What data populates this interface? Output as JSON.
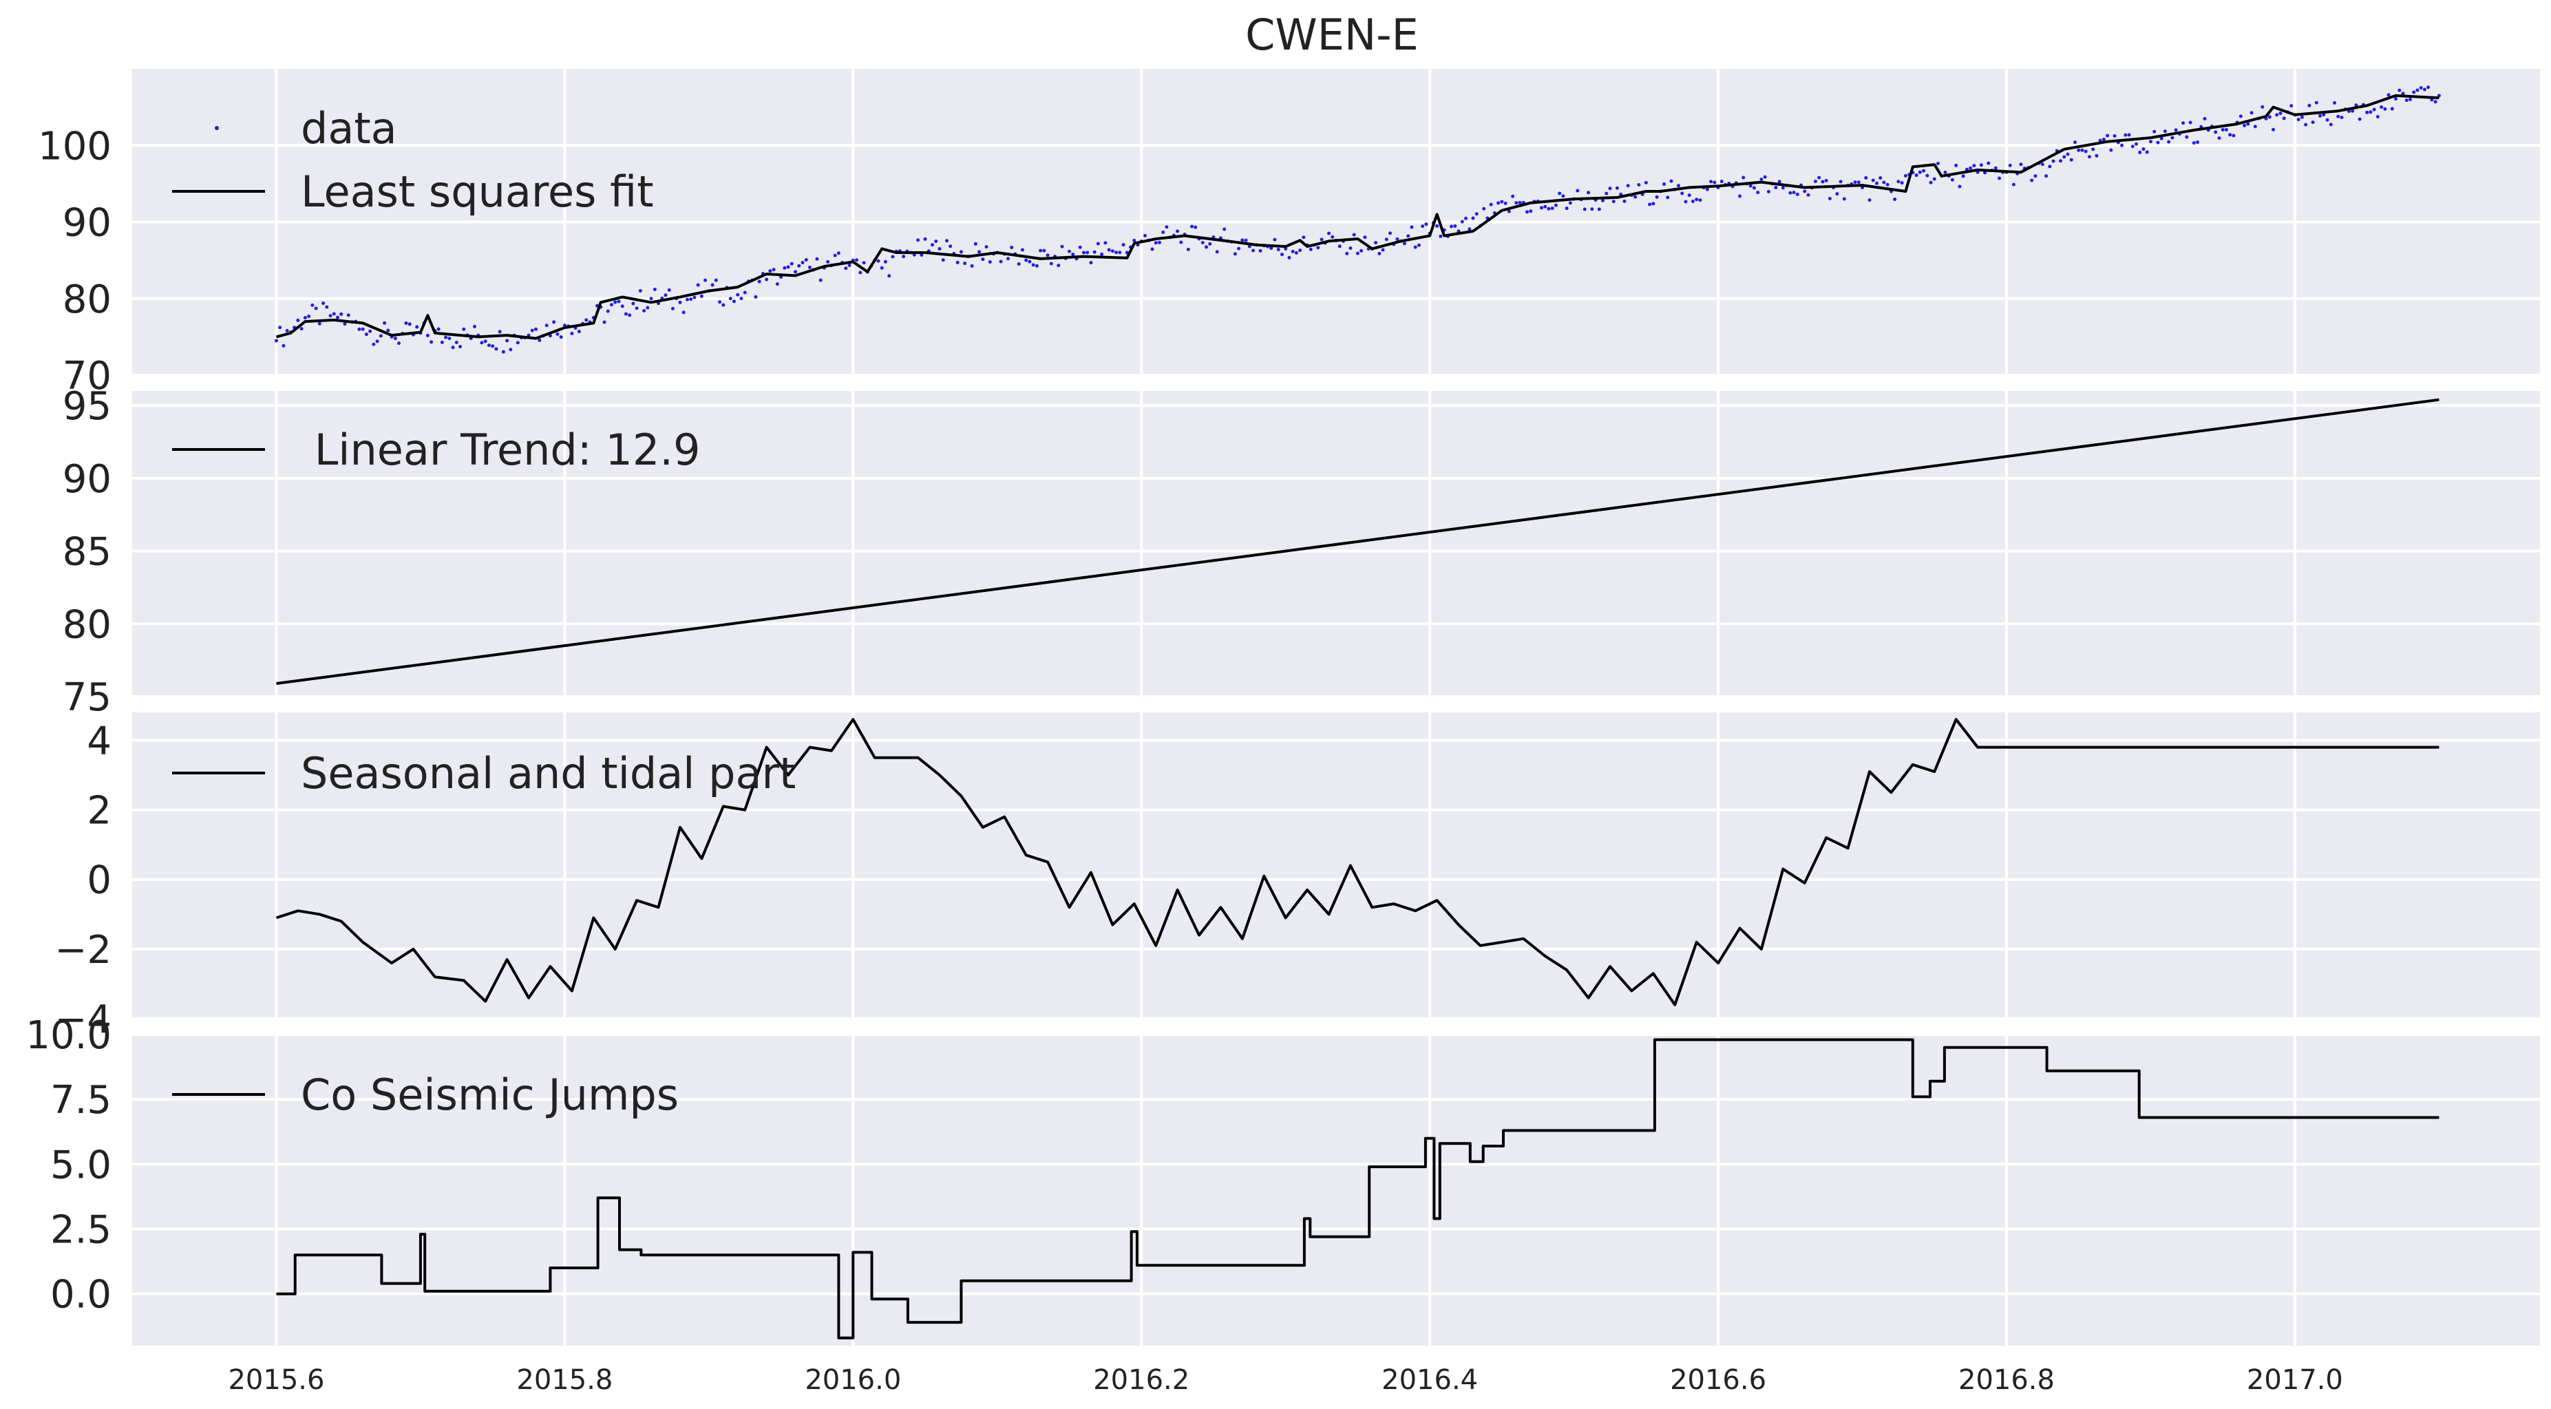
{
  "figure": {
    "title": "CWEN-E",
    "x_tick_labels": [
      "2015.6",
      "2015.8",
      "2016.0",
      "2016.2",
      "2016.4",
      "2016.6",
      "2016.8",
      "2017.0"
    ]
  },
  "colors": {
    "panel_background": "#eaeaf2",
    "grid": "#ffffff",
    "line": "#000000",
    "data_points": "#1f1fe0"
  },
  "chart_data": [
    {
      "type": "scatter",
      "title": "CWEN-E",
      "xlim": [
        2015.5,
        2017.17
      ],
      "ylim": [
        70,
        110
      ],
      "x_ticks": [
        2015.6,
        2015.8,
        2016.0,
        2016.2,
        2016.4,
        2016.6,
        2016.8,
        2017.0
      ],
      "y_ticks": [
        70,
        80,
        90,
        100
      ],
      "y_tick_labels": [
        "70",
        "80",
        "90",
        "100"
      ],
      "grid": true,
      "legend_position": "top-left",
      "series": [
        {
          "name": "data",
          "style": "points",
          "note_of_density": "daily observations scattered around the fit",
          "x": [
            2015.6,
            2015.62,
            2015.64,
            2015.66,
            2015.68,
            2015.7,
            2015.72,
            2015.74,
            2015.76,
            2015.78,
            2015.8,
            2015.82,
            2015.84,
            2015.86,
            2015.88,
            2015.9,
            2015.92,
            2015.94,
            2015.96,
            2015.98,
            2016.0,
            2016.02,
            2016.04,
            2016.06,
            2016.08,
            2016.1,
            2016.12,
            2016.14,
            2016.16,
            2016.18,
            2016.2,
            2016.22,
            2016.24,
            2016.26,
            2016.28,
            2016.3,
            2016.32,
            2016.34,
            2016.36,
            2016.38,
            2016.4,
            2016.42,
            2016.44,
            2016.46,
            2016.48,
            2016.5,
            2016.52,
            2016.54,
            2016.56,
            2016.58,
            2016.6,
            2016.62,
            2016.64,
            2016.66,
            2016.68,
            2016.7,
            2016.72,
            2016.74,
            2016.76,
            2016.78,
            2016.8,
            2016.82,
            2016.84,
            2016.86,
            2016.88,
            2016.9,
            2016.92,
            2016.94,
            2016.96,
            2016.98,
            2017.0,
            2017.02,
            2017.04,
            2017.06,
            2017.08,
            2017.1
          ],
          "y": [
            74.5,
            77.5,
            78,
            76,
            75,
            75.5,
            74.8,
            75.2,
            74.5,
            76,
            76.5,
            77.5,
            79,
            80,
            79.5,
            81,
            80.5,
            82.5,
            83.5,
            84,
            85,
            84,
            86,
            86.5,
            85.5,
            86,
            85,
            85.5,
            86,
            86.2,
            87.5,
            88,
            87.8,
            87.5,
            87,
            86.5,
            87,
            87.5,
            86.5,
            87.5,
            88.5,
            88.8,
            90.5,
            92.5,
            92,
            93,
            92.8,
            93.5,
            94,
            93.5,
            94.5,
            95,
            94.5,
            94,
            94.5,
            94.5,
            94,
            96.5,
            96,
            96.5,
            96.5,
            96,
            98.5,
            99.5,
            100,
            100.5,
            101.5,
            102,
            103,
            103.5,
            104,
            104,
            104.5,
            105,
            106,
            106.5
          ]
        },
        {
          "name": "Least squares fit",
          "style": "line",
          "x": [
            2015.6,
            2015.61,
            2015.62,
            2015.64,
            2015.66,
            2015.68,
            2015.7,
            2015.705,
            2015.71,
            2015.74,
            2015.76,
            2015.78,
            2015.8,
            2015.82,
            2015.825,
            2015.84,
            2015.86,
            2015.88,
            2015.9,
            2015.92,
            2015.94,
            2015.96,
            2015.98,
            2016.0,
            2016.01,
            2016.02,
            2016.03,
            2016.05,
            2016.08,
            2016.1,
            2016.13,
            2016.16,
            2016.19,
            2016.195,
            2016.21,
            2016.23,
            2016.26,
            2016.28,
            2016.3,
            2016.31,
            2016.315,
            2016.33,
            2016.35,
            2016.36,
            2016.38,
            2016.4,
            2016.405,
            2016.41,
            2016.43,
            2016.45,
            2016.47,
            2016.5,
            2016.53,
            2016.55,
            2016.56,
            2016.58,
            2016.6,
            2016.63,
            2016.66,
            2016.7,
            2016.73,
            2016.735,
            2016.75,
            2016.755,
            2016.78,
            2016.81,
            2016.83,
            2016.84,
            2016.87,
            2016.9,
            2016.93,
            2016.96,
            2016.98,
            2016.985,
            2017.0,
            2017.03,
            2017.05,
            2017.07,
            2017.1
          ],
          "y": [
            75,
            75.5,
            77,
            77.2,
            76.8,
            75.2,
            75.6,
            77.8,
            75.5,
            75,
            75.2,
            74.8,
            76.2,
            76.8,
            79.5,
            80.2,
            79.5,
            80.2,
            81,
            81.5,
            83.2,
            83,
            84.2,
            84.8,
            83.5,
            86.5,
            86,
            86,
            85.5,
            86,
            85.2,
            85.5,
            85.3,
            87.2,
            87.8,
            88.2,
            87.5,
            87,
            86.8,
            87.6,
            86.8,
            87.5,
            87.8,
            86.5,
            87.5,
            88.2,
            91,
            88.2,
            88.8,
            91.5,
            92.5,
            93,
            93.2,
            94,
            94,
            94.5,
            94.7,
            95.2,
            94.5,
            94.8,
            94,
            97.2,
            97.5,
            96,
            96.8,
            96.5,
            98.5,
            99.5,
            100.5,
            101,
            102,
            102.8,
            103.8,
            105,
            104,
            104.5,
            105.2,
            106.5,
            106.2
          ]
        }
      ]
    },
    {
      "type": "line",
      "xlim": [
        2015.5,
        2017.17
      ],
      "ylim": [
        75,
        96
      ],
      "x_ticks": [
        2015.6,
        2015.8,
        2016.0,
        2016.2,
        2016.4,
        2016.6,
        2016.8,
        2017.0
      ],
      "y_ticks": [
        75,
        80,
        85,
        90,
        95
      ],
      "y_tick_labels": [
        "75",
        "80",
        "85",
        "90",
        "95"
      ],
      "grid": true,
      "legend_position": "top-left",
      "series": [
        {
          "name": " Linear Trend: 12.9",
          "x": [
            2015.6,
            2017.1
          ],
          "y": [
            75.9,
            95.4
          ]
        }
      ]
    },
    {
      "type": "line",
      "xlim": [
        2015.5,
        2017.17
      ],
      "ylim": [
        -4,
        4.8
      ],
      "x_ticks": [
        2015.6,
        2015.8,
        2016.0,
        2016.2,
        2016.4,
        2016.6,
        2016.8,
        2017.0
      ],
      "y_ticks": [
        -4,
        -2,
        0,
        2,
        4
      ],
      "y_tick_labels": [
        "−4",
        "−2",
        "0",
        "2",
        "4"
      ],
      "grid": true,
      "legend_position": "top-left",
      "series": [
        {
          "name": "Seasonal and tidal part",
          "x": [
            2015.6,
            2015.615,
            2015.63,
            2015.645,
            2015.66,
            2015.68,
            2015.695,
            2015.71,
            2015.73,
            2015.745,
            2015.76,
            2015.775,
            2015.79,
            2015.805,
            2015.82,
            2015.835,
            2015.85,
            2015.865,
            2015.88,
            2015.895,
            2015.91,
            2015.925,
            2015.94,
            2015.955,
            2015.97,
            2015.985,
            2016.0,
            2016.015,
            2016.03,
            2016.045,
            2016.06,
            2016.075,
            2016.09,
            2016.105,
            2016.12,
            2016.135,
            2016.15,
            2016.165,
            2016.18,
            2016.195,
            2016.21,
            2016.225,
            2016.24,
            2016.255,
            2016.27,
            2016.285,
            2016.3,
            2016.315,
            2016.33,
            2016.345,
            2016.36,
            2016.375,
            2016.39,
            2016.405,
            2016.42,
            2016.435,
            2016.45,
            2016.465,
            2016.48,
            2016.495,
            2016.51,
            2016.525,
            2016.54,
            2016.555,
            2016.57,
            2016.585,
            2016.6,
            2016.615,
            2016.63,
            2016.645,
            2016.66,
            2016.675,
            2016.69,
            2016.705,
            2016.72,
            2016.735,
            2016.75,
            2016.765,
            2016.78,
            2016.795,
            2016.81,
            2016.825,
            2016.84,
            2016.855,
            2016.87,
            2016.885,
            2016.9,
            2016.915,
            2016.93,
            2016.945,
            2016.96,
            2016.975,
            2016.99,
            2017.005,
            2017.02,
            2017.035,
            2017.05,
            2017.065,
            2017.08,
            2017.1
          ],
          "y": [
            -1.1,
            -0.9,
            -1.0,
            -1.2,
            -1.8,
            -2.4,
            -2.0,
            -2.8,
            -2.9,
            -3.5,
            -2.3,
            -3.4,
            -2.5,
            -3.2,
            -1.1,
            -2.0,
            -0.6,
            -0.8,
            1.5,
            0.6,
            2.1,
            2.0,
            3.8,
            3.0,
            3.8,
            3.7,
            4.6,
            3.5,
            3.5,
            3.5,
            3.0,
            2.4,
            1.5,
            1.8,
            0.7,
            0.5,
            -0.8,
            0.2,
            -1.3,
            -0.7,
            -1.9,
            -0.3,
            -1.6,
            -0.8,
            -1.7,
            0.1,
            -1.1,
            -0.3,
            -1.0,
            0.4,
            -0.8,
            -0.7,
            -0.9,
            -0.6,
            -1.3,
            -1.9,
            -1.8,
            -1.7,
            -2.2,
            -2.6,
            -3.4,
            -2.5,
            -3.2,
            -2.7,
            -3.6,
            -1.8,
            -2.4,
            -1.4,
            -2.0,
            0.3,
            -0.1,
            1.2,
            0.9,
            3.1,
            2.5,
            3.3,
            3.1,
            4.6,
            3.8,
            3.8,
            3.8,
            3.8,
            3.8,
            3.8,
            3.8,
            3.8,
            3.8,
            3.8,
            3.8,
            3.8,
            3.8,
            3.8,
            3.8,
            3.8,
            3.8,
            3.8,
            3.8,
            3.8,
            3.8,
            3.8
          ]
        }
      ]
    },
    {
      "type": "line",
      "xlim": [
        2015.5,
        2017.17
      ],
      "ylim": [
        -2.0,
        10.0
      ],
      "x_ticks": [
        2015.6,
        2015.8,
        2016.0,
        2016.2,
        2016.4,
        2016.6,
        2016.8,
        2017.0
      ],
      "y_ticks": [
        0.0,
        2.5,
        5.0,
        7.5,
        10.0
      ],
      "y_tick_labels": [
        "0.0",
        "2.5",
        "5.0",
        "7.5",
        "10.0"
      ],
      "grid": true,
      "legend_position": "top-left",
      "series": [
        {
          "name": "Co Seismic Jumps",
          "step": true,
          "x": [
            2015.6,
            2015.613,
            2015.613,
            2015.673,
            2015.673,
            2015.7,
            2015.7,
            2015.703,
            2015.703,
            2015.79,
            2015.79,
            2015.823,
            2015.823,
            2015.838,
            2015.838,
            2015.853,
            2015.853,
            2015.99,
            2015.99,
            2016.0,
            2016.0,
            2016.013,
            2016.013,
            2016.038,
            2016.038,
            2016.075,
            2016.075,
            2016.193,
            2016.193,
            2016.197,
            2016.197,
            2016.313,
            2016.313,
            2016.317,
            2016.317,
            2016.358,
            2016.358,
            2016.397,
            2016.397,
            2016.403,
            2016.403,
            2016.407,
            2016.407,
            2016.428,
            2016.428,
            2016.437,
            2016.437,
            2016.447,
            2016.447,
            2016.451,
            2016.451,
            2016.556,
            2016.556,
            2016.735,
            2016.735,
            2016.747,
            2016.747,
            2016.757,
            2016.757,
            2016.828,
            2016.828,
            2016.892,
            2016.892,
            2016.983,
            2016.983,
            2017.1
          ],
          "y": [
            0.0,
            0.0,
            1.5,
            1.5,
            0.4,
            0.4,
            2.3,
            2.3,
            0.1,
            0.1,
            1.0,
            1.0,
            3.7,
            3.7,
            1.7,
            1.7,
            1.5,
            1.5,
            -1.7,
            -1.7,
            1.6,
            1.6,
            -0.2,
            -0.2,
            -1.1,
            -1.1,
            0.5,
            0.5,
            2.4,
            2.4,
            1.1,
            1.1,
            2.9,
            2.9,
            2.2,
            2.2,
            4.9,
            4.9,
            6.0,
            6.0,
            2.9,
            2.9,
            5.8,
            5.8,
            5.1,
            5.1,
            5.7,
            5.7,
            5.7,
            5.7,
            6.3,
            6.3,
            9.8,
            9.8,
            7.6,
            7.6,
            8.2,
            8.2,
            9.5,
            9.5,
            8.6,
            8.6,
            6.8,
            6.8,
            6.8,
            6.8
          ]
        }
      ]
    }
  ]
}
